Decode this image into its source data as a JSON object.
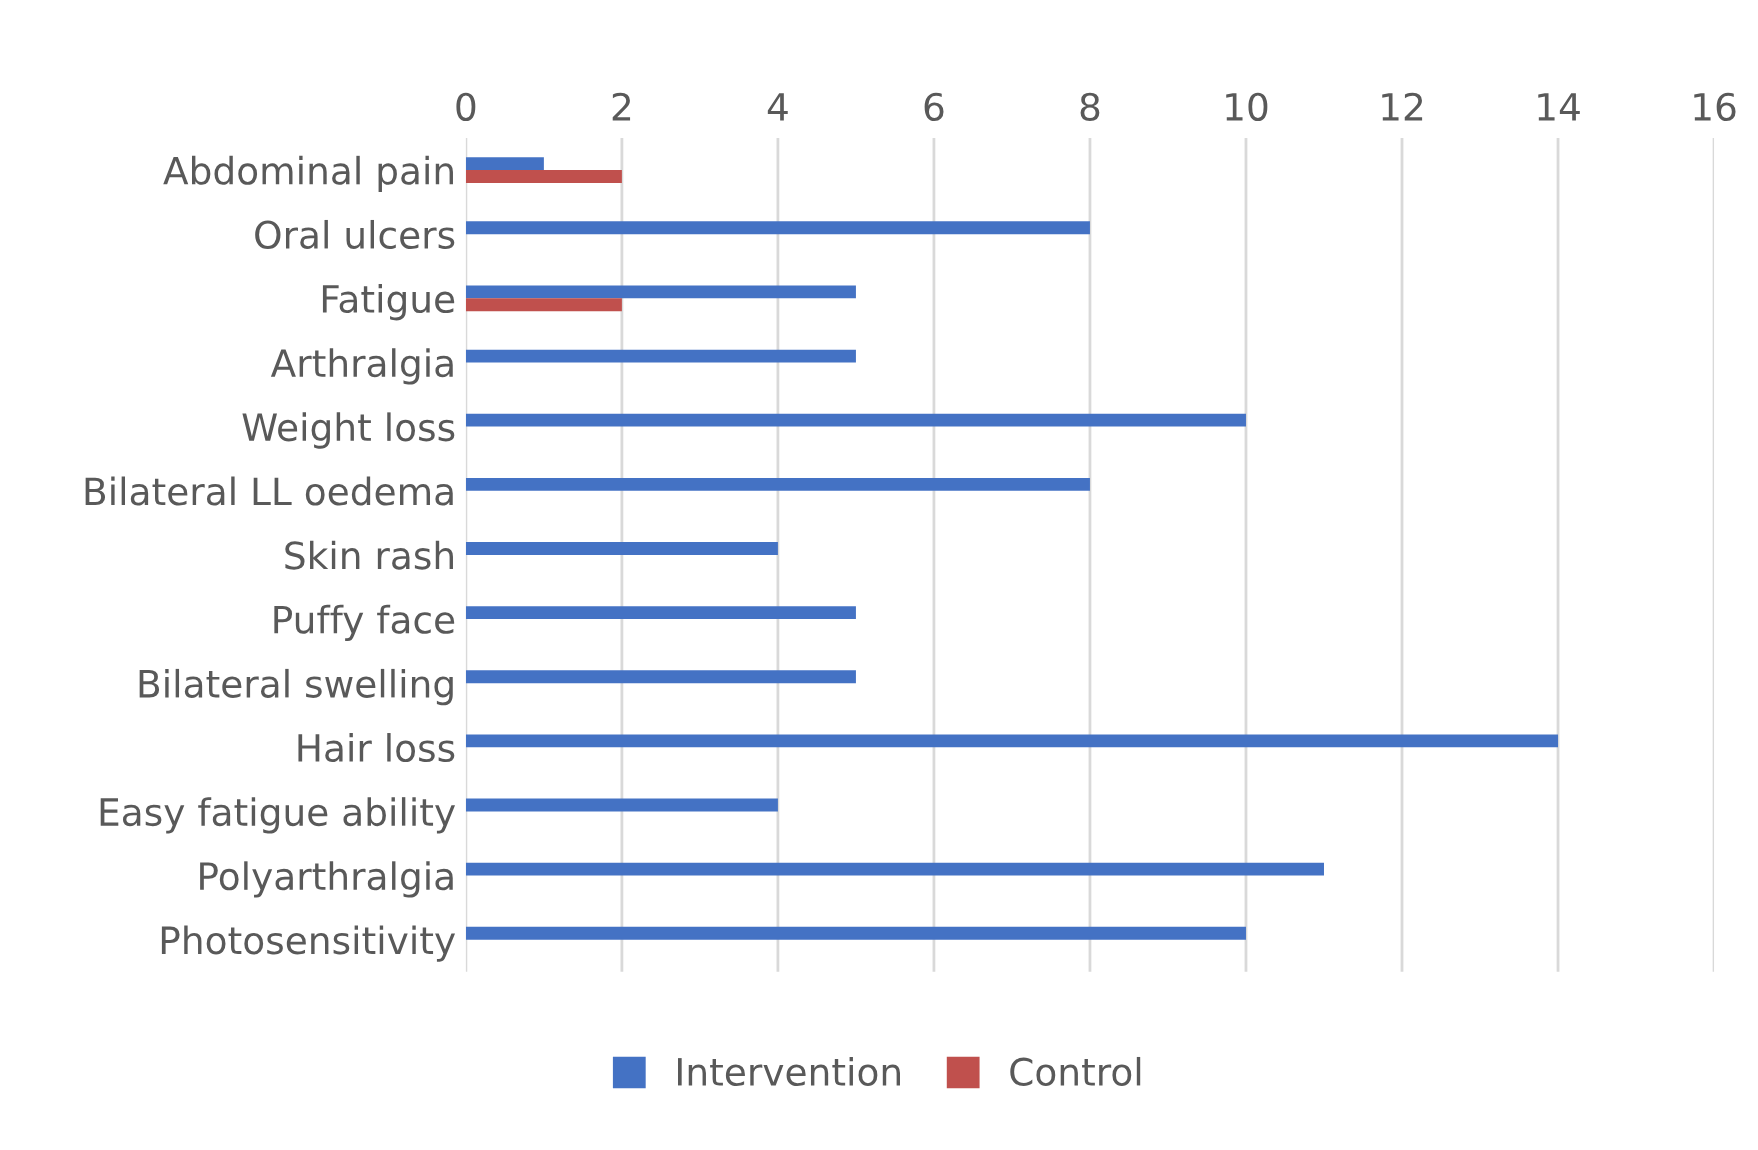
{
  "chart_data": {
    "type": "bar",
    "orientation": "horizontal",
    "categories": [
      "Abdominal pain",
      "Oral ulcers",
      "Fatigue",
      "Arthralgia",
      "Weight loss",
      "Bilateral LL oedema",
      "Skin rash",
      "Puffy face",
      "Bilateral swelling",
      "Hair loss",
      "Easy fatigue ability",
      "Polyarthralgia",
      "Photosensitivity"
    ],
    "series": [
      {
        "name": "Intervention",
        "color": "#4472c4",
        "values": [
          1,
          8,
          5,
          5,
          10,
          8,
          4,
          5,
          5,
          14,
          4,
          11,
          10
        ]
      },
      {
        "name": "Control",
        "color": "#c0504d",
        "values": [
          2,
          null,
          2,
          null,
          null,
          null,
          null,
          null,
          null,
          null,
          null,
          null,
          null
        ]
      }
    ],
    "xlim": [
      0,
      16
    ],
    "xticks": [
      0,
      2,
      4,
      6,
      8,
      10,
      12,
      14,
      16
    ],
    "grid": "x",
    "legend": "bottom"
  }
}
